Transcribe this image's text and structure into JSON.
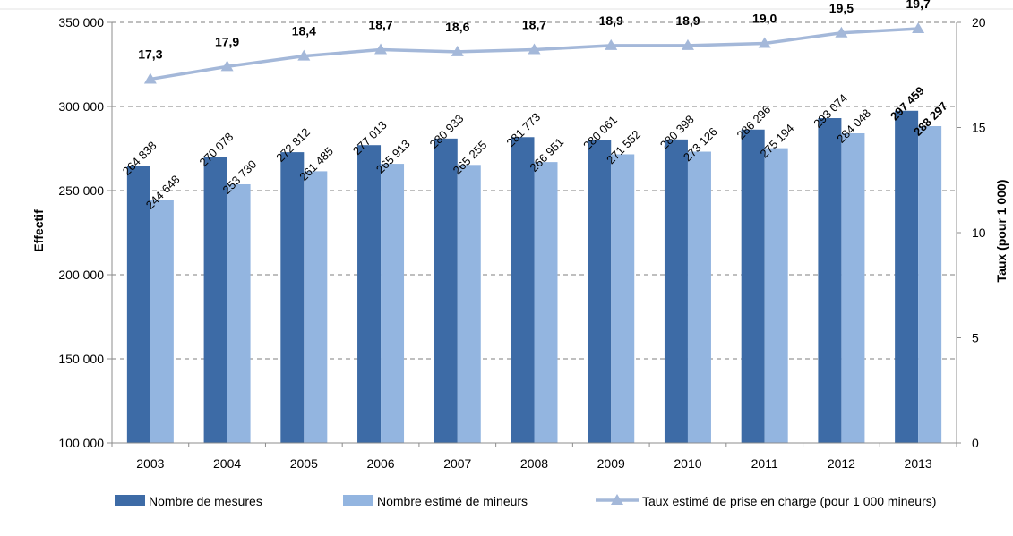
{
  "chart_data": {
    "type": "bar",
    "categories": [
      "2003",
      "2004",
      "2005",
      "2006",
      "2007",
      "2008",
      "2009",
      "2010",
      "2011",
      "2012",
      "2013"
    ],
    "series": [
      {
        "name": "Nombre de mesures",
        "kind": "bar",
        "axis": "left",
        "values": [
          264838,
          270078,
          272812,
          277013,
          280933,
          281773,
          280061,
          280398,
          286296,
          293074,
          297459
        ],
        "labels": [
          "264 838",
          "270 078",
          "272 812",
          "277 013",
          "280 933",
          "281 773",
          "280 061",
          "280 398",
          "286 296",
          "293 074",
          "297 459"
        ],
        "color": "#3d6ba6"
      },
      {
        "name": "Nombre estimé de mineurs",
        "kind": "bar",
        "axis": "left",
        "values": [
          244648,
          253730,
          261485,
          265913,
          265255,
          266951,
          271552,
          273126,
          275194,
          284048,
          288297
        ],
        "labels": [
          "244 648",
          "253 730",
          "261 485",
          "265 913",
          "265 255",
          "266 951",
          "271 552",
          "273 126",
          "275 194",
          "284 048",
          "288 297"
        ],
        "color": "#93b5e0"
      },
      {
        "name": "Taux estimé de prise en charge (pour 1 000 mineurs)",
        "kind": "line",
        "axis": "right",
        "values": [
          17.3,
          17.9,
          18.4,
          18.7,
          18.6,
          18.7,
          18.9,
          18.9,
          19.0,
          19.5,
          19.7
        ],
        "labels": [
          "17,3",
          "17,9",
          "18,4",
          "18,7",
          "18,6",
          "18,7",
          "18,9",
          "18,9",
          "19,0",
          "19,5",
          "19,7"
        ],
        "color": "#a4b8d9"
      }
    ],
    "y_left": {
      "label": "Effectif",
      "min": 100000,
      "max": 350000,
      "ticks": [
        100000,
        150000,
        200000,
        250000,
        300000,
        350000
      ],
      "tick_labels": [
        "100 000",
        "150 000",
        "200 000",
        "250 000",
        "300 000",
        "350 000"
      ]
    },
    "y_right": {
      "label": "Taux (pour 1 000)",
      "min": 0,
      "max": 20,
      "ticks": [
        0,
        5,
        10,
        15,
        20
      ],
      "tick_labels": [
        "0",
        "5",
        "10",
        "15",
        "20"
      ]
    },
    "grid": "dashed horizontal",
    "legend": "bottom"
  }
}
